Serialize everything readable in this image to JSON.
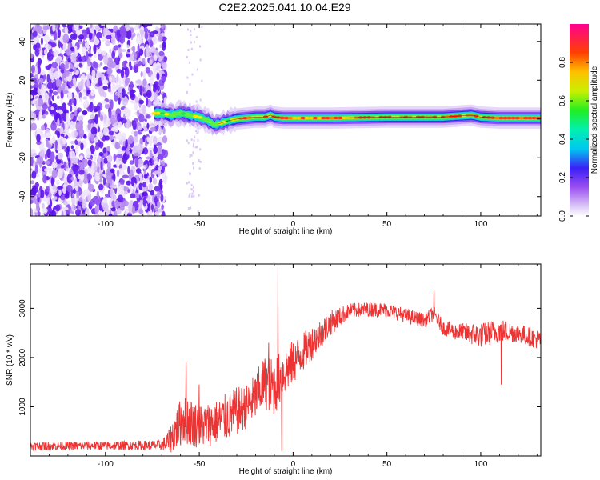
{
  "title": "C2E2.2025.041.10.04.E29",
  "chart_data": [
    {
      "type": "heatmap",
      "xlabel": "Height of straight line (km)",
      "ylabel": "Frequency (Hz)",
      "xlim": [
        -140,
        132
      ],
      "ylim": [
        -50,
        49
      ],
      "xticks": [
        -100,
        -50,
        0,
        50,
        100
      ],
      "yticks": [
        -40,
        -20,
        0,
        20,
        40
      ],
      "colorbar": {
        "label": "Normalized spectral amplitude",
        "range": [
          0,
          1
        ],
        "ticks": [
          0.0,
          0.2,
          0.4,
          0.6,
          0.8
        ]
      },
      "trace": {
        "x": [
          -74,
          -70,
          -65,
          -60,
          -55,
          -50,
          -45,
          -42,
          -38,
          -35,
          -30,
          -25,
          -20,
          -15,
          -12,
          -10,
          -5,
          0,
          20,
          50,
          80,
          95,
          100,
          110,
          120,
          132
        ],
        "freq": [
          3,
          3,
          2,
          3,
          2,
          1,
          -1,
          -3,
          -2,
          -1,
          0,
          0.5,
          1,
          1,
          2,
          1,
          0.5,
          0.5,
          0.5,
          1,
          1,
          2,
          1,
          0.5,
          0.5,
          0.5
        ]
      },
      "noise_region_x": [
        -140,
        -68
      ]
    },
    {
      "type": "line",
      "xlabel": "Height of straight line (km)",
      "ylabel": "SNR (10 * v/v)",
      "xlim": [
        -140,
        132
      ],
      "ylim": [
        0,
        3900
      ],
      "xticks": [
        -100,
        -50,
        0,
        50,
        100
      ],
      "yticks": [
        1000,
        2000,
        3000
      ],
      "color": "#ee3333",
      "envelope": {
        "x": [
          -140,
          -100,
          -70,
          -66,
          -63,
          -58,
          -55,
          -50,
          -45,
          -40,
          -35,
          -30,
          -25,
          -20,
          -15,
          -10,
          -5,
          0,
          5,
          10,
          15,
          20,
          30,
          40,
          50,
          60,
          70,
          75,
          80,
          90,
          100,
          110,
          120,
          132
        ],
        "mean": [
          200,
          210,
          220,
          300,
          500,
          800,
          700,
          600,
          650,
          700,
          800,
          900,
          1000,
          1200,
          1500,
          1400,
          1700,
          1900,
          2100,
          2300,
          2500,
          2700,
          2950,
          2980,
          2970,
          2850,
          2750,
          2900,
          2600,
          2500,
          2450,
          2550,
          2500,
          2350
        ],
        "spread": [
          90,
          90,
          100,
          250,
          400,
          550,
          500,
          450,
          450,
          450,
          500,
          500,
          450,
          500,
          550,
          600,
          500,
          450,
          400,
          350,
          300,
          250,
          150,
          150,
          150,
          150,
          150,
          150,
          150,
          200,
          250,
          250,
          200,
          200
        ]
      },
      "spikes": [
        {
          "x": -8,
          "y": 3900
        },
        {
          "x": -57,
          "y": 1900
        },
        {
          "x": -50,
          "y": 1450
        },
        {
          "x": -13,
          "y": 2300
        },
        {
          "x": -6,
          "y": 100
        },
        {
          "x": 75,
          "y": 3350
        },
        {
          "x": 111,
          "y": 1450
        }
      ]
    }
  ]
}
